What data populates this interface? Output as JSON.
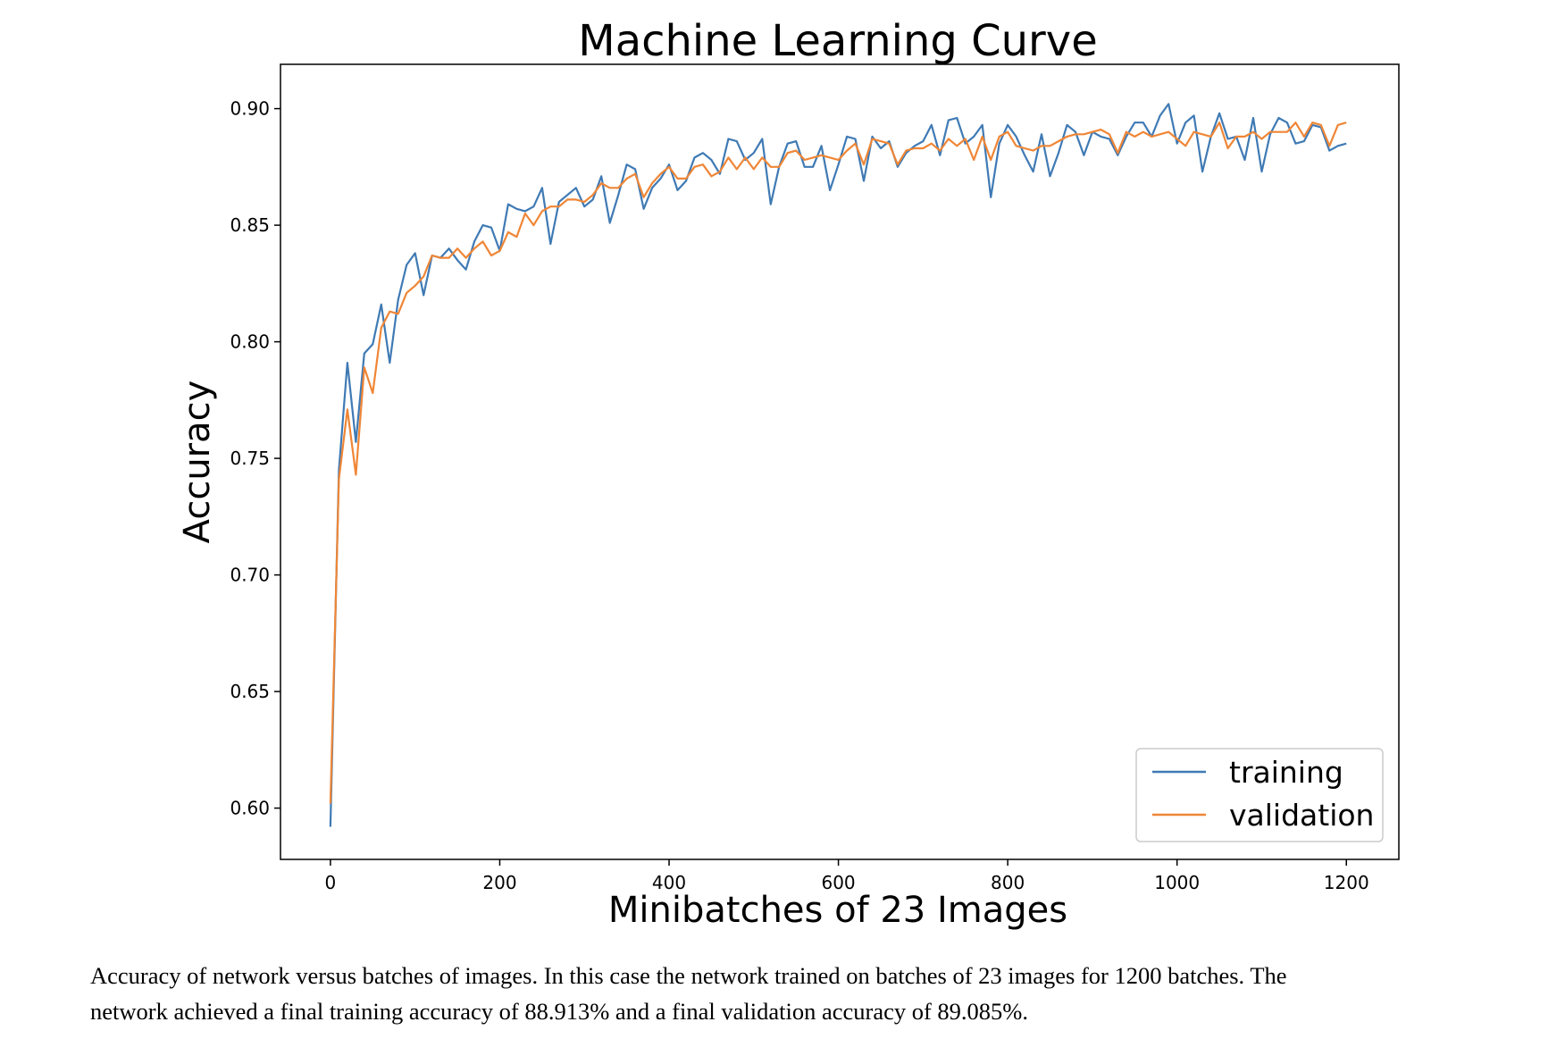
{
  "chart_data": {
    "type": "line",
    "title": "Machine Learning Curve",
    "xlabel": "Minibatches of 23 Images",
    "ylabel": "Accuracy",
    "xlim": [
      -59,
      1262
    ],
    "ylim": [
      0.578,
      0.919
    ],
    "xticks": [
      0,
      200,
      400,
      600,
      800,
      1000,
      1200
    ],
    "xtick_labels": [
      "0",
      "200",
      "400",
      "600",
      "800",
      "1000",
      "1200"
    ],
    "yticks": [
      0.6,
      0.65,
      0.7,
      0.75,
      0.8,
      0.85,
      0.9
    ],
    "ytick_labels": [
      "0.60",
      "0.65",
      "0.70",
      "0.75",
      "0.80",
      "0.85",
      "0.90"
    ],
    "legend_position": "lower-right",
    "grid": false,
    "x": [
      0,
      10,
      20,
      30,
      40,
      50,
      60,
      70,
      80,
      90,
      100,
      110,
      120,
      130,
      140,
      150,
      160,
      170,
      180,
      190,
      200,
      210,
      220,
      230,
      240,
      250,
      260,
      270,
      280,
      290,
      300,
      310,
      320,
      330,
      340,
      350,
      360,
      370,
      380,
      390,
      400,
      410,
      420,
      430,
      440,
      450,
      460,
      470,
      480,
      490,
      500,
      510,
      520,
      530,
      540,
      550,
      560,
      570,
      580,
      590,
      600,
      610,
      620,
      630,
      640,
      650,
      660,
      670,
      680,
      690,
      700,
      710,
      720,
      730,
      740,
      750,
      760,
      770,
      780,
      790,
      800,
      810,
      820,
      830,
      840,
      850,
      860,
      870,
      880,
      890,
      900,
      910,
      920,
      930,
      940,
      950,
      960,
      970,
      980,
      990,
      1000,
      1010,
      1020,
      1030,
      1040,
      1050,
      1060,
      1070,
      1080,
      1090,
      1100,
      1110,
      1120,
      1130,
      1140,
      1150,
      1160,
      1170,
      1180,
      1190,
      1200
    ],
    "series": [
      {
        "name": "training",
        "color": "#3f7ab4",
        "values": [
          0.592,
          0.745,
          0.791,
          0.757,
          0.795,
          0.799,
          0.816,
          0.791,
          0.818,
          0.833,
          0.838,
          0.82,
          0.837,
          0.836,
          0.84,
          0.835,
          0.831,
          0.843,
          0.85,
          0.849,
          0.839,
          0.859,
          0.857,
          0.856,
          0.858,
          0.866,
          0.842,
          0.86,
          0.863,
          0.866,
          0.858,
          0.861,
          0.871,
          0.851,
          0.863,
          0.876,
          0.874,
          0.857,
          0.866,
          0.87,
          0.876,
          0.865,
          0.869,
          0.879,
          0.881,
          0.878,
          0.872,
          0.887,
          0.886,
          0.878,
          0.881,
          0.887,
          0.859,
          0.875,
          0.885,
          0.886,
          0.875,
          0.875,
          0.884,
          0.865,
          0.876,
          0.888,
          0.887,
          0.869,
          0.888,
          0.883,
          0.886,
          0.875,
          0.881,
          0.884,
          0.886,
          0.893,
          0.88,
          0.895,
          0.896,
          0.885,
          0.888,
          0.893,
          0.862,
          0.885,
          0.893,
          0.888,
          0.88,
          0.873,
          0.889,
          0.871,
          0.881,
          0.893,
          0.89,
          0.88,
          0.89,
          0.888,
          0.887,
          0.88,
          0.888,
          0.894,
          0.894,
          0.888,
          0.897,
          0.902,
          0.885,
          0.894,
          0.897,
          0.873,
          0.888,
          0.898,
          0.887,
          0.888,
          0.878,
          0.896,
          0.873,
          0.889,
          0.896,
          0.894,
          0.885,
          0.886,
          0.893,
          0.892,
          0.882,
          0.884,
          0.885
        ]
      },
      {
        "name": "validation",
        "color": "#ef8636",
        "values": [
          0.602,
          0.741,
          0.771,
          0.743,
          0.789,
          0.778,
          0.806,
          0.813,
          0.812,
          0.821,
          0.824,
          0.828,
          0.837,
          0.836,
          0.836,
          0.84,
          0.836,
          0.84,
          0.843,
          0.837,
          0.839,
          0.847,
          0.845,
          0.855,
          0.85,
          0.856,
          0.858,
          0.858,
          0.861,
          0.861,
          0.86,
          0.863,
          0.868,
          0.866,
          0.866,
          0.87,
          0.872,
          0.862,
          0.868,
          0.872,
          0.875,
          0.87,
          0.87,
          0.875,
          0.876,
          0.871,
          0.873,
          0.879,
          0.874,
          0.879,
          0.874,
          0.879,
          0.875,
          0.875,
          0.881,
          0.882,
          0.878,
          0.879,
          0.88,
          0.879,
          0.878,
          0.882,
          0.885,
          0.876,
          0.887,
          0.886,
          0.885,
          0.876,
          0.882,
          0.883,
          0.883,
          0.885,
          0.882,
          0.887,
          0.884,
          0.887,
          0.878,
          0.888,
          0.878,
          0.888,
          0.89,
          0.884,
          0.883,
          0.882,
          0.884,
          0.884,
          0.886,
          0.888,
          0.889,
          0.889,
          0.89,
          0.891,
          0.889,
          0.881,
          0.89,
          0.888,
          0.89,
          0.888,
          0.889,
          0.89,
          0.887,
          0.884,
          0.89,
          0.889,
          0.888,
          0.894,
          0.883,
          0.888,
          0.888,
          0.89,
          0.887,
          0.89,
          0.89,
          0.89,
          0.894,
          0.888,
          0.894,
          0.893,
          0.884,
          0.893,
          0.894
        ]
      }
    ]
  },
  "caption": {
    "line1": "Accuracy of network versus batches of images. In this case the network trained on batches of 23 images for 1200 batches. The",
    "line2": "network achieved a final training accuracy of 88.913% and a final validation accuracy of 89.085%."
  }
}
